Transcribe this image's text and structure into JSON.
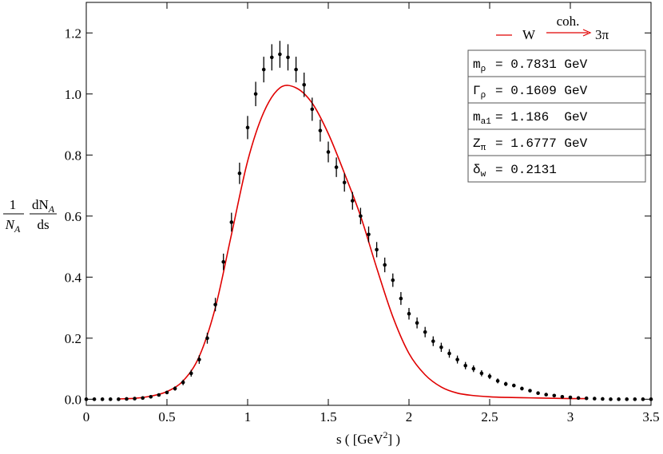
{
  "chart_data": {
    "type": "errorbar",
    "ylabel": {
      "left": {
        "num": "1",
        "den": "N",
        "den_sub": "A"
      },
      "right": {
        "num": "dN",
        "num_sub": "A",
        "den": "ds"
      }
    },
    "xlabel": {
      "text": "s ( [GeV",
      "sup": "2",
      "end": "] )"
    },
    "legend": {
      "arrow_label": "coh.",
      "target": "3π"
    },
    "info_box": [
      {
        "symbol": "m",
        "sub": "ρ",
        "text": "= 0.7831 GeV"
      },
      {
        "symbol": "Γ",
        "sub": "ρ",
        "text": "= 0.1609 GeV"
      },
      {
        "symbol": "m",
        "sub": "a1",
        "text": "= 1.186  GeV"
      },
      {
        "symbol": "Z",
        "sub": "π",
        "text": "= 1.6777 GeV"
      },
      {
        "symbol": "δ",
        "sub": "w",
        "text": "= 0.2131"
      }
    ],
    "xlim": [
      0,
      3.5
    ],
    "ylim": [
      -0.02,
      1.3
    ],
    "xticks": [
      0,
      0.5,
      1,
      1.5,
      2,
      2.5,
      3,
      3.5
    ],
    "yticks": [
      {
        "value": 0,
        "label": "0.0"
      },
      0.2,
      0.4,
      0.6,
      0.8,
      {
        "value": 1,
        "label": "1.0"
      },
      1.2
    ],
    "series": [
      {
        "name": "W",
        "type": "line",
        "color": "#e00000",
        "x": [
          0.2,
          0.3,
          0.4,
          0.5,
          0.6,
          0.7,
          0.8,
          0.9,
          1.0,
          1.1,
          1.2,
          1.3,
          1.4,
          1.5,
          1.6,
          1.7,
          1.8,
          1.9,
          2.0,
          2.1,
          2.2,
          2.3,
          2.4,
          2.5,
          2.6,
          2.7,
          2.8,
          2.9,
          3.0,
          3.1
        ],
        "values": [
          0.001,
          0.003,
          0.01,
          0.025,
          0.06,
          0.14,
          0.3,
          0.54,
          0.78,
          0.94,
          1.02,
          1.02,
          0.97,
          0.87,
          0.74,
          0.6,
          0.43,
          0.27,
          0.15,
          0.08,
          0.04,
          0.02,
          0.012,
          0.008,
          0.006,
          0.005,
          0.004,
          0.003,
          0.002,
          0.002
        ]
      },
      {
        "type": "points",
        "color": "#000000",
        "x": [
          0,
          0.05,
          0.1,
          0.15,
          0.2,
          0.25,
          0.3,
          0.35,
          0.4,
          0.45,
          0.5,
          0.55,
          0.6,
          0.65,
          0.7,
          0.75,
          0.8,
          0.85,
          0.9,
          0.95,
          1.0,
          1.05,
          1.1,
          1.15,
          1.2,
          1.25,
          1.3,
          1.35,
          1.4,
          1.45,
          1.5,
          1.55,
          1.6,
          1.65,
          1.7,
          1.75,
          1.8,
          1.85,
          1.9,
          1.95,
          2.0,
          2.05,
          2.1,
          2.15,
          2.2,
          2.25,
          2.3,
          2.35,
          2.4,
          2.45,
          2.5,
          2.55,
          2.6,
          2.65,
          2.7,
          2.75,
          2.8,
          2.85,
          2.9,
          2.95,
          3.0,
          3.05,
          3.1,
          3.15,
          3.2,
          3.25,
          3.3,
          3.35,
          3.4,
          3.45,
          3.5
        ],
        "values": [
          0,
          0,
          0,
          0,
          0,
          0.001,
          0.002,
          0.004,
          0.008,
          0.014,
          0.022,
          0.035,
          0.055,
          0.085,
          0.13,
          0.2,
          0.31,
          0.45,
          0.58,
          0.74,
          0.89,
          1.0,
          1.08,
          1.12,
          1.13,
          1.12,
          1.08,
          1.03,
          0.95,
          0.88,
          0.81,
          0.76,
          0.71,
          0.65,
          0.6,
          0.54,
          0.49,
          0.44,
          0.39,
          0.33,
          0.28,
          0.25,
          0.22,
          0.19,
          0.17,
          0.15,
          0.13,
          0.11,
          0.1,
          0.085,
          0.075,
          0.06,
          0.05,
          0.045,
          0.035,
          0.028,
          0.02,
          0.015,
          0.012,
          0.008,
          0.006,
          0.004,
          0.003,
          0.002,
          0.001,
          0,
          0,
          0,
          0,
          0,
          0
        ],
        "errors": [
          0,
          0,
          0,
          0,
          0,
          0.001,
          0.001,
          0.002,
          0.003,
          0.004,
          0.005,
          0.007,
          0.009,
          0.011,
          0.014,
          0.018,
          0.022,
          0.027,
          0.031,
          0.035,
          0.038,
          0.04,
          0.042,
          0.043,
          0.044,
          0.043,
          0.042,
          0.04,
          0.038,
          0.036,
          0.034,
          0.032,
          0.03,
          0.029,
          0.027,
          0.026,
          0.025,
          0.024,
          0.022,
          0.021,
          0.019,
          0.018,
          0.017,
          0.016,
          0.015,
          0.014,
          0.013,
          0.012,
          0.011,
          0.01,
          0.009,
          0.008,
          0.007,
          0.006,
          0.006,
          0.005,
          0.004,
          0.004,
          0.003,
          0.003,
          0.002,
          0.002,
          0.002,
          0.001,
          0.001,
          0,
          0,
          0,
          0,
          0,
          0
        ]
      }
    ]
  }
}
